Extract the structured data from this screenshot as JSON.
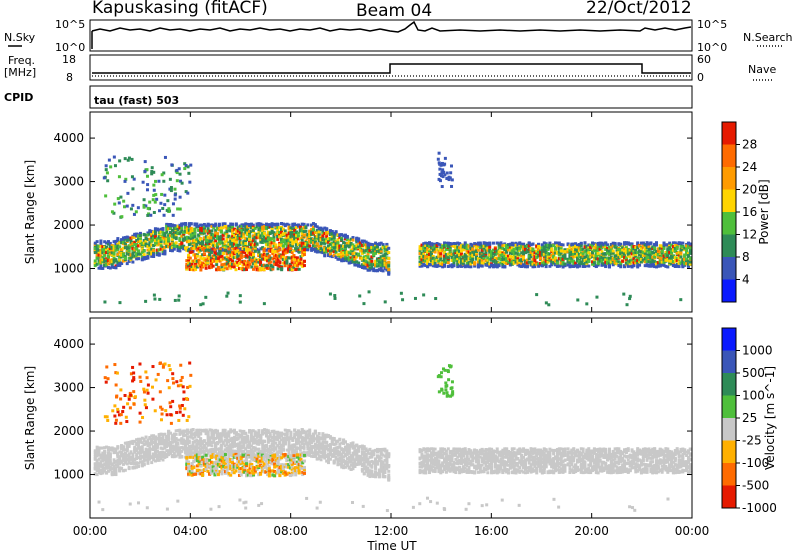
{
  "header": {
    "station": "Kapuskasing (fitACF)",
    "beam": "Beam 04",
    "date": "22/Oct/2012"
  },
  "top_panels": {
    "noise": {
      "left_label": "N.Sky",
      "right_label": "N.Search",
      "left_ticks": [
        "10^5",
        "10^0"
      ],
      "right_ticks": [
        "10^5",
        "10^0"
      ]
    },
    "freq": {
      "left_label_line1": "Freq.",
      "left_label_line2": "[MHz]",
      "right_label": "Nave",
      "left_ticks": [
        "18",
        "8"
      ],
      "right_ticks": [
        "60",
        "0"
      ]
    },
    "cpid_label": "CPID",
    "cpid_value": "tau (fast) 503"
  },
  "chart_data": [
    {
      "type": "heatmap",
      "title": "",
      "ylabel": "Slant Range [km]",
      "xlabel": "",
      "ylim": [
        0,
        4600
      ],
      "yticks": [
        "1000",
        "2000",
        "3000",
        "4000"
      ],
      "colorbar": {
        "label": "Power [dB]",
        "ticks": [
          "4",
          "8",
          "12",
          "16",
          "20",
          "24",
          "28"
        ],
        "colors": [
          "#0a1aff",
          "#3a56b8",
          "#2e8b57",
          "#4fbf3b",
          "#ffd400",
          "#ff9b00",
          "#ff6b00",
          "#e61a00"
        ]
      }
    },
    {
      "type": "heatmap",
      "title": "",
      "ylabel": "Slant Range [km]",
      "xlabel": "Time UT",
      "ylim": [
        0,
        4600
      ],
      "yticks": [
        "1000",
        "2000",
        "3000",
        "4000"
      ],
      "xticks": [
        "00:00",
        "04:00",
        "08:00",
        "12:00",
        "16:00",
        "20:00",
        "00:00"
      ],
      "colorbar": {
        "label": "Velocity [m s^-1]",
        "ticks": [
          "1000",
          "500",
          "100",
          "25",
          "-25",
          "-100",
          "-500",
          "-1000"
        ],
        "colors": [
          "#0a1aff",
          "#3a56b8",
          "#2e8b57",
          "#4fbf3b",
          "#c8c8c8",
          "#ffb000",
          "#ff6b00",
          "#e61a00"
        ]
      }
    }
  ]
}
